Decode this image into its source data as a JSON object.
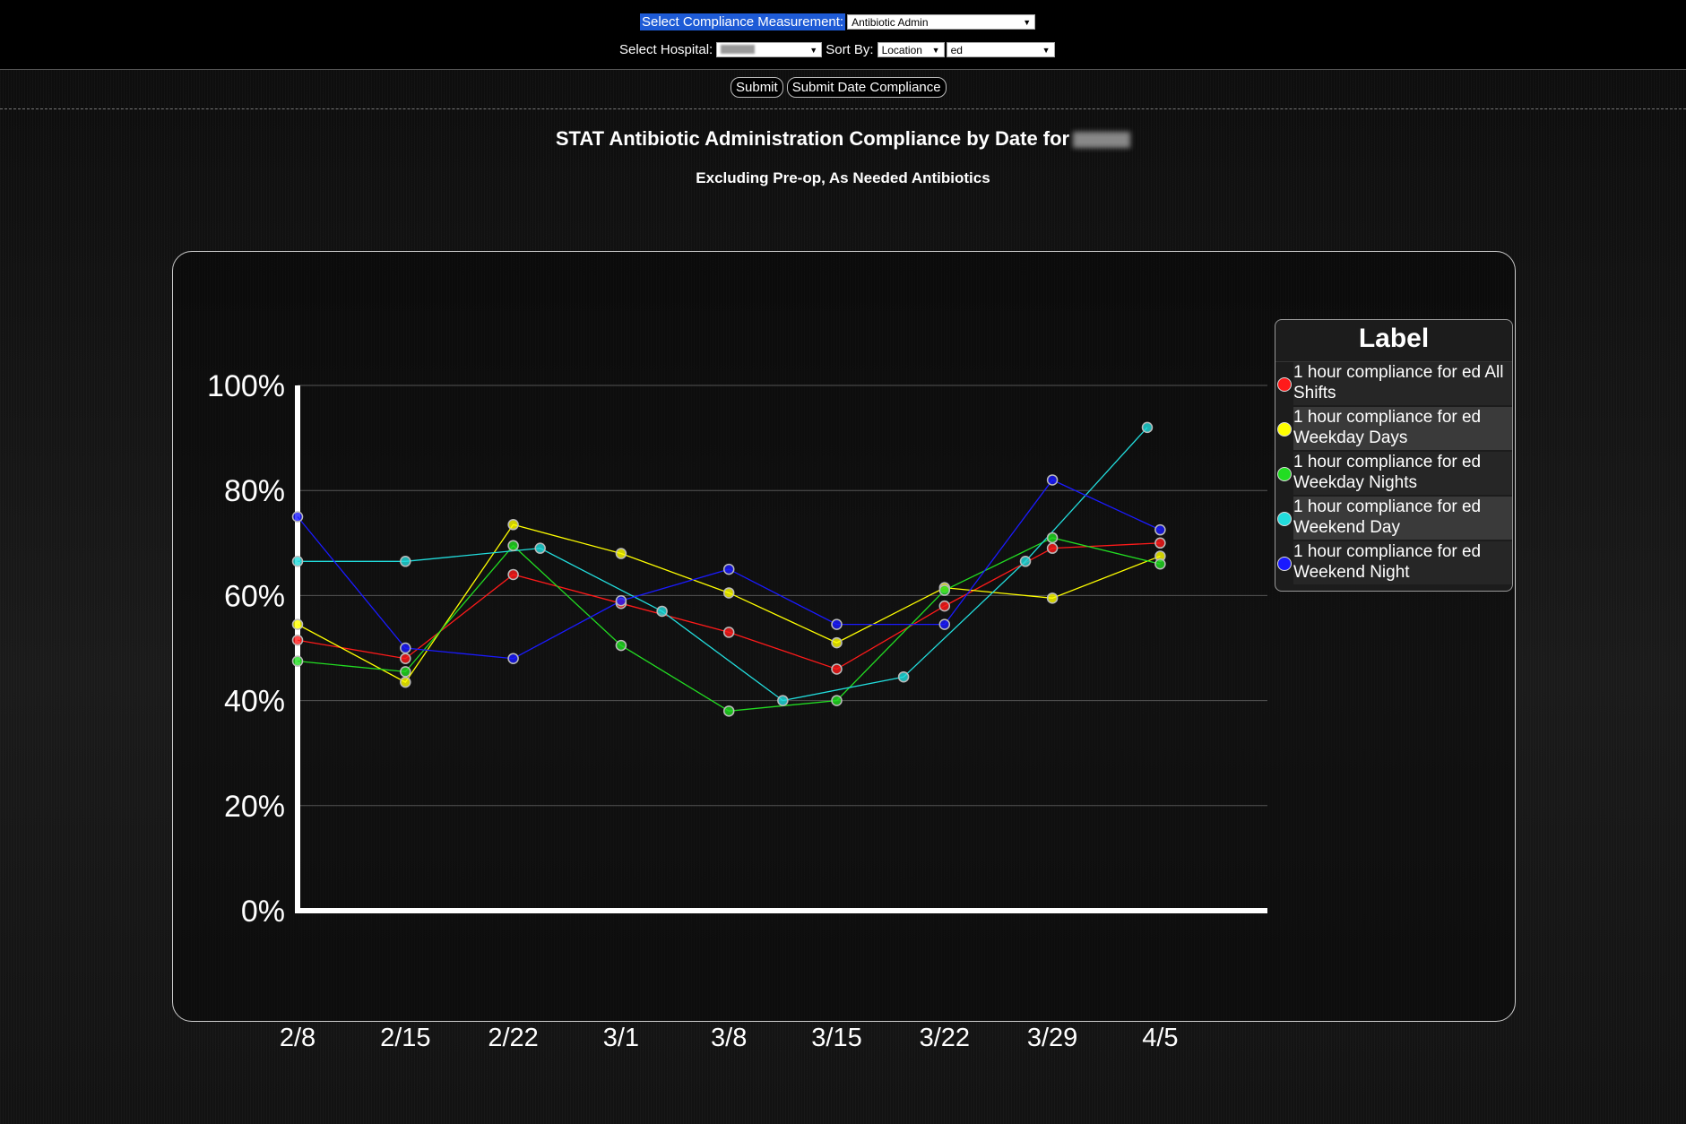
{
  "controls": {
    "measurement_label": "Select Compliance Measurement:",
    "measurement_value": "Antibiotic Admin",
    "hospital_label": "Select Hospital:",
    "sort_label": "Sort By:",
    "sort_value": "Location",
    "location_value": "ed",
    "submit_label": "Submit",
    "submit_date_label": "Submit Date Compliance"
  },
  "legend_title": "Label",
  "chart_data": {
    "type": "line",
    "title": "STAT Antibiotic Administration Compliance by Date for",
    "subtitle": "Excluding Pre-op, As Needed Antibiotics",
    "xlabel": "",
    "ylabel": "",
    "ylim": [
      0,
      100
    ],
    "yticks": [
      "0%",
      "20%",
      "40%",
      "60%",
      "80%",
      "100%"
    ],
    "categories": [
      "2/8",
      "2/15",
      "2/22",
      "3/1",
      "3/8",
      "3/15",
      "3/22",
      "3/29",
      "4/5"
    ],
    "grid": true,
    "legend_position": "right",
    "series": [
      {
        "name": "1 hour compliance for ed All Shifts",
        "color": "#ff1a1a",
        "points": [
          [
            0,
            51.5
          ],
          [
            1,
            48
          ],
          [
            2,
            64
          ],
          [
            3,
            58.5
          ],
          [
            4,
            53
          ],
          [
            5,
            46
          ],
          [
            6,
            58
          ],
          [
            7,
            69
          ],
          [
            8,
            70
          ]
        ]
      },
      {
        "name": "1 hour compliance for ed Weekday Days",
        "color": "#ffff00",
        "points": [
          [
            0,
            54.5
          ],
          [
            1,
            43.5
          ],
          [
            2,
            73.5
          ],
          [
            3,
            68
          ],
          [
            4,
            60.5
          ],
          [
            5,
            51
          ],
          [
            6,
            61.5
          ],
          [
            7,
            59.5
          ],
          [
            8,
            67.5
          ]
        ]
      },
      {
        "name": "1 hour compliance for ed Weekday Nights",
        "color": "#22dd22",
        "points": [
          [
            0,
            47.5
          ],
          [
            1,
            45.5
          ],
          [
            2,
            69.5
          ],
          [
            3,
            50.5
          ],
          [
            4,
            38
          ],
          [
            5,
            40
          ],
          [
            6,
            61
          ],
          [
            7,
            71
          ],
          [
            8,
            66
          ]
        ]
      },
      {
        "name": "1 hour compliance for ed Weekend Day",
        "color": "#22dddd",
        "points": [
          [
            0,
            66.5
          ],
          [
            1,
            66.5
          ],
          [
            2.25,
            69
          ],
          [
            3.38,
            57
          ],
          [
            4.5,
            40
          ],
          [
            5.62,
            44.5
          ],
          [
            6.75,
            66.5
          ],
          [
            7.88,
            92
          ]
        ]
      },
      {
        "name": "1 hour compliance for ed Weekend Night",
        "color": "#1a1aff",
        "points": [
          [
            0,
            75
          ],
          [
            1,
            50
          ],
          [
            2,
            48
          ],
          [
            3,
            59
          ],
          [
            4,
            65
          ],
          [
            5,
            54.5
          ],
          [
            6,
            54.5
          ],
          [
            7,
            82
          ],
          [
            8,
            72.5
          ]
        ]
      }
    ]
  }
}
